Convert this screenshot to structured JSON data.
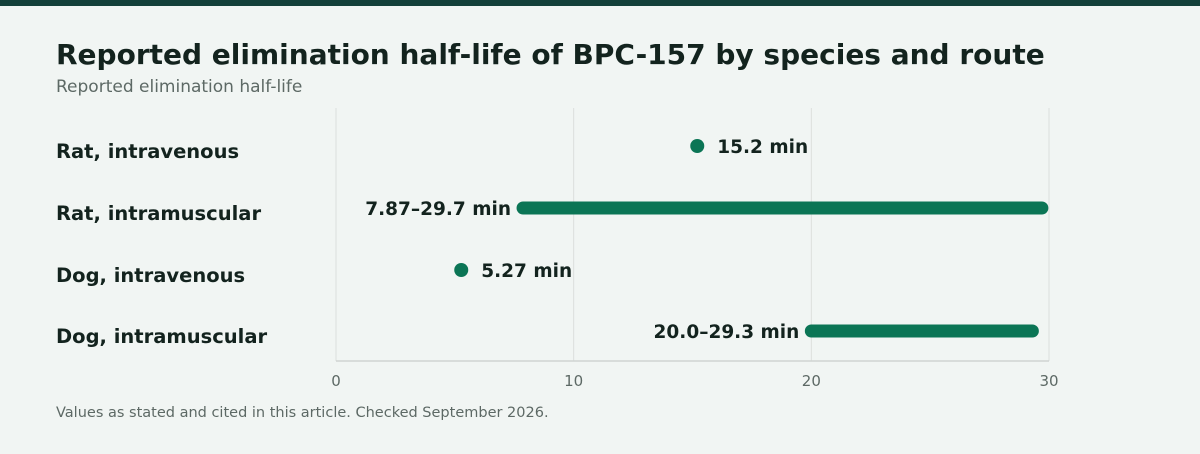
{
  "title": "Reported elimination half-life of BPC-157 by species and route",
  "subtitle": "Reported elimination half-life",
  "footnote": "Values as stated and cited in this article. Checked September 2026.",
  "colors": {
    "accent": "#0b7555",
    "top_bar": "#13403a",
    "background": "#f1f5f3",
    "text": "#13231e",
    "muted": "#5d6965",
    "grid": "#dcdfdd"
  },
  "chart_data": {
    "type": "range-dot",
    "orientation": "horizontal",
    "categories": [
      "Rat, intravenous",
      "Rat, intramuscular",
      "Dog, intravenous",
      "Dog, intramuscular"
    ],
    "unit": "min",
    "values": [
      {
        "category": "Rat, intravenous",
        "low": 15.2,
        "high": 15.2,
        "label": "15.2 min"
      },
      {
        "category": "Rat, intramuscular",
        "low": 7.87,
        "high": 29.7,
        "label": "7.87–29.7 min"
      },
      {
        "category": "Dog, intravenous",
        "low": 5.27,
        "high": 5.27,
        "label": "5.27 min"
      },
      {
        "category": "Dog, intramuscular",
        "low": 20.0,
        "high": 29.3,
        "label": "20.0–29.3 min"
      }
    ],
    "xlim": [
      0,
      30
    ],
    "xticks": [
      0,
      10,
      20,
      30
    ],
    "grid": true,
    "legend": "none"
  }
}
